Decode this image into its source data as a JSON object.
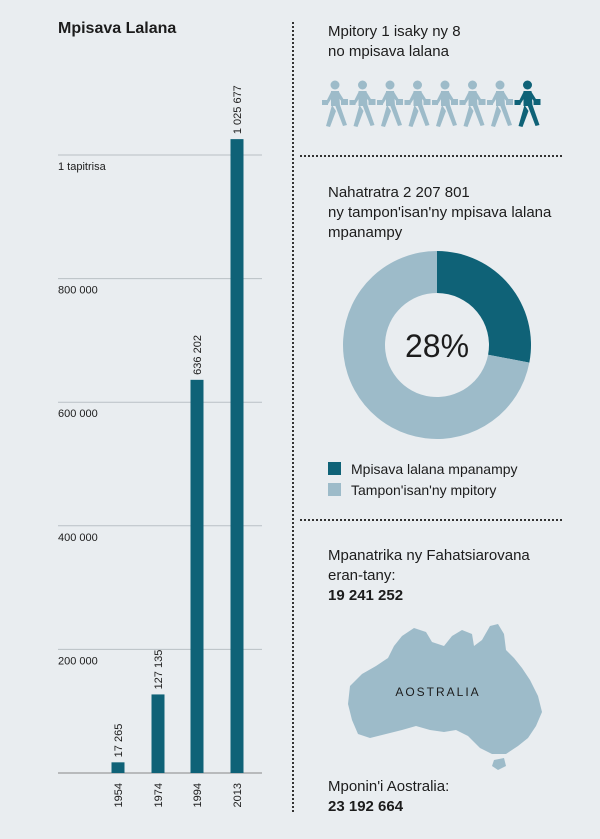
{
  "colors": {
    "dark": "#0f6277",
    "light": "#9dbbc9",
    "background": "#e9edf0",
    "grid": "#b9c0c5"
  },
  "left": {
    "title": "Mpisava Lalana"
  },
  "chart_data": {
    "type": "bar",
    "title": "Mpisava Lalana",
    "categories": [
      "1954",
      "1974",
      "1994",
      "2013"
    ],
    "values": [
      17265,
      127135,
      636202,
      1025677
    ],
    "value_labels": [
      "17 265",
      "127 135",
      "636 202",
      "1 025 677"
    ],
    "ylim": [
      0,
      1000000
    ],
    "yticks": [
      {
        "value": 200000,
        "label": "200 000"
      },
      {
        "value": 400000,
        "label": "400 000"
      },
      {
        "value": 600000,
        "label": "600 000"
      },
      {
        "value": 800000,
        "label": "800 000"
      },
      {
        "value": 1000000,
        "label": "1 tapitrisa"
      }
    ],
    "grid": true
  },
  "commuters": {
    "text_line1": "Mpitory 1 isaky ny 8",
    "text_line2": "no mpisava lalana",
    "icon": "walking-commuter-icon",
    "count_total": 8,
    "count_highlight": 1
  },
  "donut": {
    "text_line1": "Nahatratra 2 207 801",
    "text_line2": "ny tampon'isan'ny mpisava lalana",
    "text_line3": "mpanampy",
    "percent_label": "28%",
    "slices": [
      {
        "label": "Mpisava lalana mpanampy",
        "value": 28,
        "color": "#0f6277"
      },
      {
        "label": "Tampon'isan'ny mpitory",
        "value": 72,
        "color": "#9dbbc9"
      }
    ]
  },
  "overseas": {
    "text_line1": "Mpanatrika ny Fahatsiarovana",
    "text_line2": "eran-tany:",
    "value": "19 241 252",
    "map_label": "AOSTRALIA"
  },
  "population": {
    "text": "Mponin'i Aostralia:",
    "value": "23 192 664"
  }
}
